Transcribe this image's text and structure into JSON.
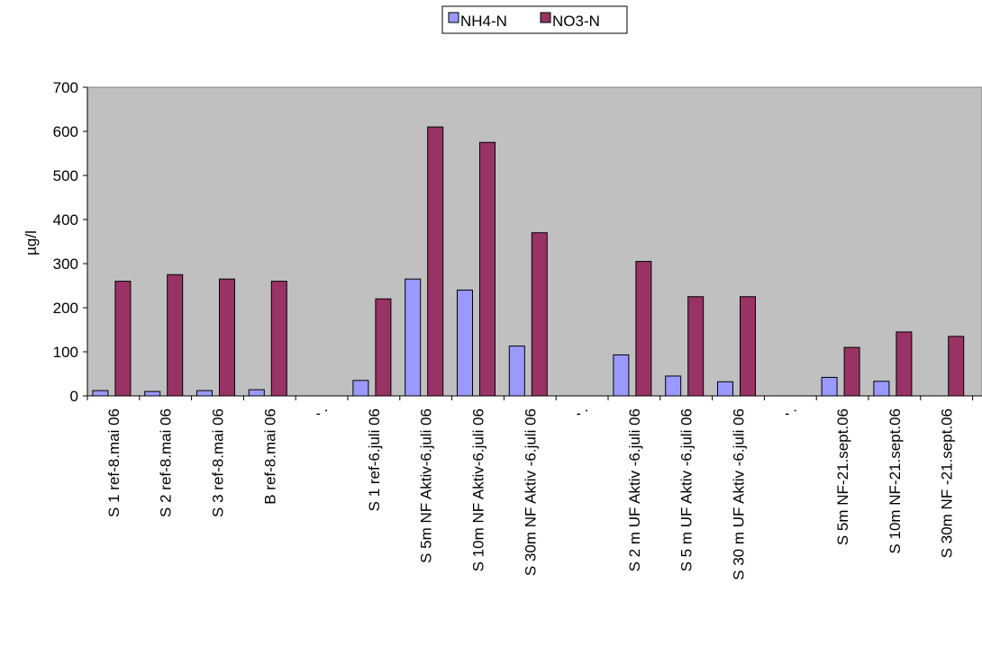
{
  "chart_data": {
    "type": "bar",
    "ylabel": "µg/l",
    "xlabel": "",
    "ylim": [
      0,
      700
    ],
    "yticks": [
      0,
      100,
      200,
      300,
      400,
      500,
      600,
      700
    ],
    "grid": false,
    "legend_position": "top-center",
    "categories": [
      "S 1 ref-8.mai 06",
      "S 2 ref-8.mai 06",
      "S 3 ref-8.mai 06",
      "B ref-8.mai 06",
      "'.",
      "S 1 ref-6.juli 06",
      "S 5m NF Aktiv-6.juli 06",
      "S 10m NF Aktiv-6.juli 06",
      "S 30m NF Aktiv -6.juli 06",
      "'.",
      "S 2 m UF Aktiv -6.juli 06",
      "S 5 m UF Aktiv -6.juli 06",
      "S 30 m UF Aktiv -6.juli 06",
      "'.",
      "S 5m NF-21.sept.06",
      "S 10m NF-21.sept.06",
      "S 30m NF -21.sept.06"
    ],
    "series": [
      {
        "name": "NH4-N",
        "color": "#9999ff",
        "values": [
          12,
          10,
          12,
          14,
          null,
          35,
          265,
          240,
          113,
          null,
          93,
          45,
          32,
          null,
          42,
          33,
          null
        ]
      },
      {
        "name": "NO3-N",
        "color": "#993366",
        "values": [
          260,
          275,
          265,
          260,
          null,
          220,
          610,
          575,
          370,
          null,
          305,
          225,
          225,
          null,
          110,
          145,
          135
        ]
      }
    ],
    "plot_background": "#c0c0c0"
  }
}
